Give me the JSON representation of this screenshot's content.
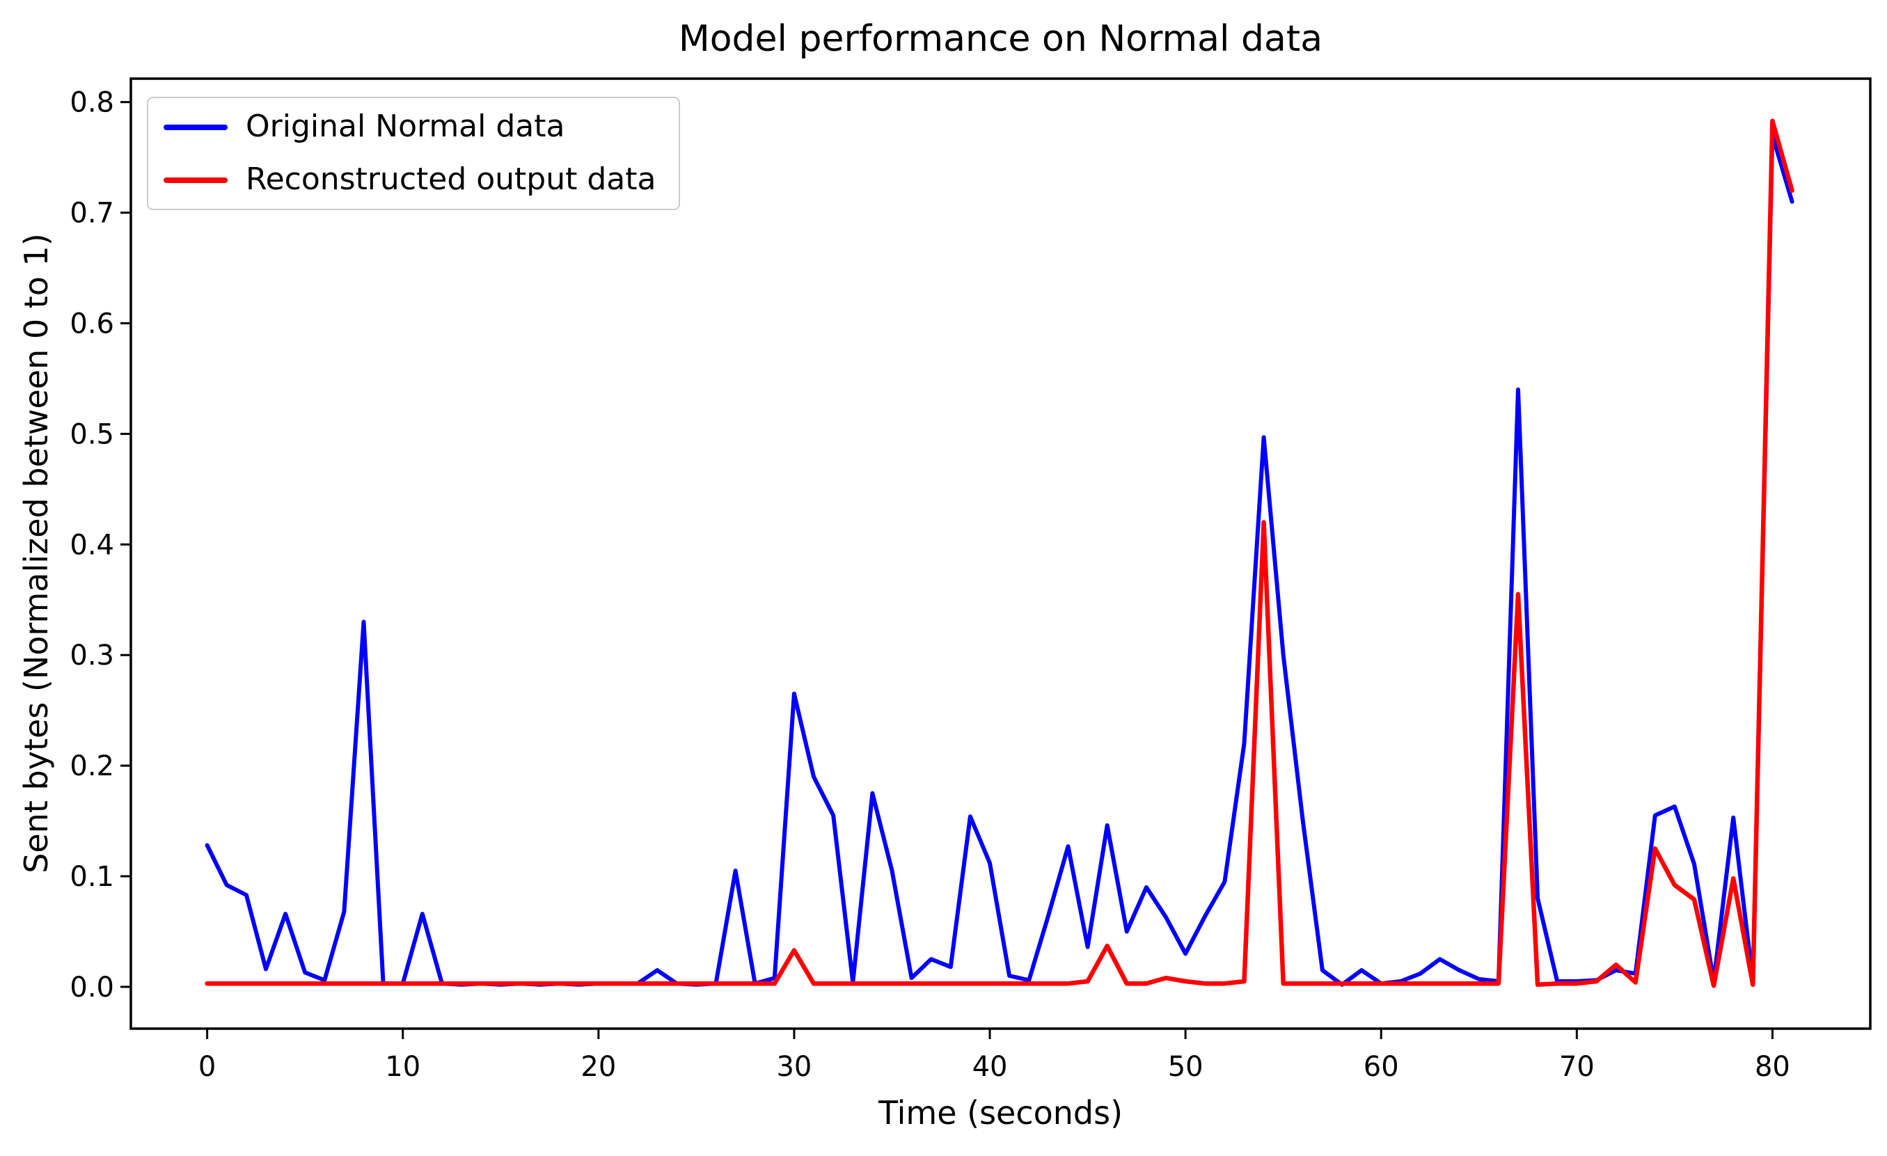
{
  "chart_data": {
    "type": "line",
    "title": "Model performance on Normal data",
    "xlabel": "Time (seconds)",
    "ylabel": "Sent bytes (Normalized between 0 to 1)",
    "xlim": [
      -3.9,
      85.0
    ],
    "ylim": [
      -0.0378,
      0.8212
    ],
    "grid": false,
    "legend_position": "upper left",
    "background_color": "#ffffff",
    "spine_color": "#000000",
    "x_ticks": [
      0,
      10,
      20,
      30,
      40,
      50,
      60,
      70,
      80
    ],
    "x_tick_labels": [
      "0",
      "10",
      "20",
      "30",
      "40",
      "50",
      "60",
      "70",
      "80"
    ],
    "y_ticks": [
      0.0,
      0.1,
      0.2,
      0.3,
      0.4,
      0.5,
      0.6,
      0.7,
      0.8
    ],
    "y_tick_labels": [
      "0.0",
      "0.1",
      "0.2",
      "0.3",
      "0.4",
      "0.5",
      "0.6",
      "0.7",
      "0.8"
    ],
    "x": [
      0,
      1,
      2,
      3,
      4,
      5,
      6,
      7,
      8,
      9,
      10,
      11,
      12,
      13,
      14,
      15,
      16,
      17,
      18,
      19,
      20,
      21,
      22,
      23,
      24,
      25,
      26,
      27,
      28,
      29,
      30,
      31,
      32,
      33,
      34,
      35,
      36,
      37,
      38,
      39,
      40,
      41,
      42,
      43,
      44,
      45,
      46,
      47,
      48,
      49,
      50,
      51,
      52,
      53,
      54,
      55,
      56,
      57,
      58,
      59,
      60,
      61,
      62,
      63,
      64,
      65,
      66,
      67,
      68,
      69,
      70,
      71,
      72,
      73,
      74,
      75,
      76,
      77,
      78,
      79,
      80,
      81
    ],
    "series": [
      {
        "name": "Original Normal data",
        "color": "#0000ff",
        "values": [
          0.128,
          0.092,
          0.083,
          0.016,
          0.066,
          0.013,
          0.006,
          0.068,
          0.33,
          0.003,
          0.003,
          0.066,
          0.003,
          0.002,
          0.003,
          0.002,
          0.003,
          0.002,
          0.003,
          0.002,
          0.003,
          0.003,
          0.003,
          0.015,
          0.003,
          0.002,
          0.003,
          0.105,
          0.003,
          0.008,
          0.265,
          0.19,
          0.155,
          0.004,
          0.175,
          0.105,
          0.008,
          0.025,
          0.018,
          0.154,
          0.112,
          0.01,
          0.006,
          0.065,
          0.127,
          0.036,
          0.146,
          0.05,
          0.09,
          0.063,
          0.03,
          0.064,
          0.095,
          0.22,
          0.497,
          0.3,
          0.15,
          0.015,
          0.002,
          0.015,
          0.003,
          0.005,
          0.012,
          0.025,
          0.015,
          0.007,
          0.005,
          0.54,
          0.08,
          0.005,
          0.005,
          0.006,
          0.015,
          0.012,
          0.155,
          0.163,
          0.111,
          0.005,
          0.153,
          0.005,
          0.77,
          0.71
        ]
      },
      {
        "name": "Reconstructed output data",
        "color": "#ff0000",
        "values": [
          0.003,
          0.003,
          0.003,
          0.003,
          0.003,
          0.003,
          0.003,
          0.003,
          0.003,
          0.003,
          0.003,
          0.003,
          0.003,
          0.003,
          0.003,
          0.003,
          0.003,
          0.003,
          0.003,
          0.003,
          0.003,
          0.003,
          0.003,
          0.003,
          0.003,
          0.003,
          0.003,
          0.003,
          0.003,
          0.003,
          0.033,
          0.003,
          0.003,
          0.003,
          0.003,
          0.003,
          0.003,
          0.003,
          0.003,
          0.003,
          0.003,
          0.003,
          0.003,
          0.003,
          0.003,
          0.005,
          0.037,
          0.003,
          0.003,
          0.008,
          0.005,
          0.003,
          0.003,
          0.005,
          0.42,
          0.003,
          0.003,
          0.003,
          0.003,
          0.003,
          0.003,
          0.003,
          0.003,
          0.003,
          0.003,
          0.003,
          0.003,
          0.355,
          0.002,
          0.003,
          0.003,
          0.005,
          0.02,
          0.004,
          0.125,
          0.092,
          0.079,
          0.001,
          0.098,
          0.002,
          0.783,
          0.72
        ]
      }
    ],
    "legend": {
      "entries": [
        {
          "label": "Original Normal data",
          "color": "#0000ff"
        },
        {
          "label": "Reconstructed output data",
          "color": "#ff0000"
        }
      ]
    }
  }
}
